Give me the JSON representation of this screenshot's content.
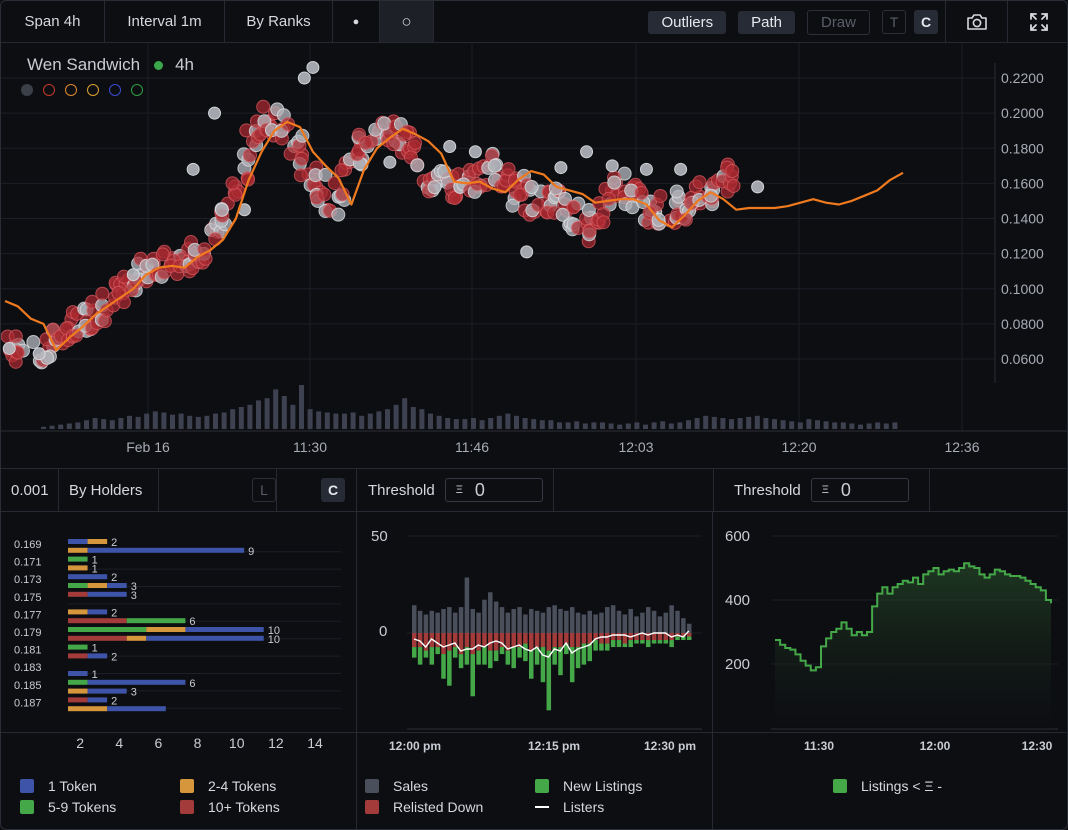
{
  "topbar": {
    "span": "Span 4h",
    "interval": "Interval 1m",
    "by_ranks": "By Ranks",
    "dot_toggle": "●",
    "circle_toggle": "○",
    "outliers": "Outliers",
    "path": "Path",
    "draw": "Draw",
    "t_toggle": "T",
    "c_toggle": "C",
    "camera_icon": "camera-icon",
    "fullscreen_icon": "fullscreen-icon"
  },
  "main_chart": {
    "collection": "Wen Sandwich",
    "status_color": "#3aa84a",
    "timeframe": "4h",
    "filter_colors": [
      "#3b3f48",
      "#c0392b",
      "#e08a2e",
      "#d9a030",
      "#3b4ccf",
      "#2e9e44"
    ],
    "chart_data": {
      "type": "scatter",
      "x_ticks": [
        "Feb 16",
        "11:30",
        "11:46",
        "12:03",
        "12:20",
        "12:36"
      ],
      "y_ticks": [
        "0.2200",
        "0.2000",
        "0.1800",
        "0.1600",
        "0.1400",
        "0.1200",
        "0.1000",
        "0.0800",
        "0.0600"
      ],
      "ylim": [
        0.05,
        0.23
      ],
      "xlim_minutes": [
        0,
        160
      ],
      "path_series": [
        [
          0,
          0.093
        ],
        [
          3,
          0.09
        ],
        [
          6,
          0.083
        ],
        [
          9,
          0.08
        ],
        [
          12,
          0.065
        ],
        [
          15,
          0.072
        ],
        [
          18,
          0.078
        ],
        [
          21,
          0.085
        ],
        [
          24,
          0.09
        ],
        [
          27,
          0.095
        ],
        [
          30,
          0.1
        ],
        [
          33,
          0.108
        ],
        [
          36,
          0.112
        ],
        [
          39,
          0.113
        ],
        [
          42,
          0.112
        ],
        [
          45,
          0.118
        ],
        [
          48,
          0.122
        ],
        [
          51,
          0.128
        ],
        [
          54,
          0.14
        ],
        [
          57,
          0.162
        ],
        [
          60,
          0.178
        ],
        [
          63,
          0.19
        ],
        [
          66,
          0.195
        ],
        [
          69,
          0.192
        ],
        [
          72,
          0.178
        ],
        [
          75,
          0.17
        ],
        [
          78,
          0.163
        ],
        [
          81,
          0.148
        ],
        [
          84,
          0.168
        ],
        [
          87,
          0.18
        ],
        [
          90,
          0.186
        ],
        [
          93,
          0.191
        ],
        [
          96,
          0.188
        ],
        [
          99,
          0.184
        ],
        [
          102,
          0.177
        ],
        [
          105,
          0.161
        ],
        [
          108,
          0.16
        ],
        [
          111,
          0.161
        ],
        [
          114,
          0.157
        ],
        [
          117,
          0.155
        ],
        [
          120,
          0.162
        ],
        [
          123,
          0.167
        ],
        [
          126,
          0.165
        ],
        [
          129,
          0.158
        ],
        [
          132,
          0.156
        ],
        [
          135,
          0.154
        ],
        [
          138,
          0.149
        ],
        [
          141,
          0.15
        ],
        [
          144,
          0.151
        ],
        [
          147,
          0.151
        ],
        [
          150,
          0.148
        ],
        [
          153,
          0.139
        ],
        [
          156,
          0.135
        ],
        [
          159,
          0.142
        ],
        [
          162,
          0.15
        ],
        [
          165,
          0.155
        ],
        [
          168,
          0.151
        ],
        [
          171,
          0.145
        ],
        [
          174,
          0.146
        ],
        [
          177,
          0.146
        ],
        [
          180,
          0.146
        ],
        [
          183,
          0.147
        ],
        [
          186,
          0.149
        ],
        [
          189,
          0.151
        ],
        [
          192,
          0.149
        ],
        [
          195,
          0.148
        ],
        [
          198,
          0.15
        ],
        [
          201,
          0.153
        ],
        [
          204,
          0.156
        ],
        [
          207,
          0.162
        ],
        [
          210,
          0.166
        ]
      ],
      "scatter_center": [
        [
          2,
          0.066
        ],
        [
          4,
          0.065
        ],
        [
          8,
          0.062
        ],
        [
          10,
          0.068
        ],
        [
          12,
          0.072
        ],
        [
          14,
          0.075
        ],
        [
          16,
          0.08
        ],
        [
          18,
          0.082
        ],
        [
          20,
          0.085
        ],
        [
          22,
          0.088
        ],
        [
          24,
          0.09
        ],
        [
          26,
          0.095
        ],
        [
          28,
          0.1
        ],
        [
          30,
          0.105
        ],
        [
          32,
          0.11
        ],
        [
          34,
          0.115
        ],
        [
          36,
          0.113
        ],
        [
          38,
          0.112
        ],
        [
          40,
          0.115
        ],
        [
          42,
          0.115
        ],
        [
          44,
          0.118
        ],
        [
          46,
          0.12
        ],
        [
          48,
          0.126
        ],
        [
          50,
          0.135
        ],
        [
          52,
          0.148
        ],
        [
          54,
          0.158
        ],
        [
          56,
          0.17
        ],
        [
          58,
          0.185
        ],
        [
          60,
          0.19
        ],
        [
          62,
          0.195
        ],
        [
          64,
          0.196
        ],
        [
          66,
          0.19
        ],
        [
          68,
          0.18
        ],
        [
          70,
          0.168
        ],
        [
          72,
          0.163
        ],
        [
          74,
          0.156
        ],
        [
          76,
          0.152
        ],
        [
          78,
          0.15
        ],
        [
          80,
          0.165
        ],
        [
          82,
          0.178
        ],
        [
          84,
          0.182
        ],
        [
          86,
          0.188
        ],
        [
          88,
          0.192
        ],
        [
          90,
          0.19
        ],
        [
          92,
          0.186
        ],
        [
          94,
          0.184
        ],
        [
          96,
          0.175
        ],
        [
          98,
          0.165
        ],
        [
          100,
          0.16
        ],
        [
          102,
          0.163
        ],
        [
          104,
          0.16
        ],
        [
          106,
          0.158
        ],
        [
          108,
          0.156
        ],
        [
          110,
          0.16
        ],
        [
          112,
          0.164
        ],
        [
          114,
          0.168
        ],
        [
          116,
          0.167
        ],
        [
          118,
          0.16
        ],
        [
          120,
          0.156
        ],
        [
          122,
          0.152
        ],
        [
          124,
          0.15
        ],
        [
          126,
          0.148
        ],
        [
          128,
          0.148
        ],
        [
          130,
          0.15
        ],
        [
          132,
          0.145
        ],
        [
          134,
          0.14
        ],
        [
          136,
          0.132
        ],
        [
          138,
          0.138
        ],
        [
          140,
          0.145
        ],
        [
          142,
          0.152
        ],
        [
          144,
          0.158
        ],
        [
          146,
          0.155
        ],
        [
          148,
          0.15
        ],
        [
          150,
          0.148
        ],
        [
          152,
          0.146
        ],
        [
          154,
          0.145
        ],
        [
          156,
          0.146
        ],
        [
          158,
          0.148
        ],
        [
          160,
          0.148
        ],
        [
          162,
          0.15
        ],
        [
          164,
          0.152
        ],
        [
          166,
          0.156
        ],
        [
          168,
          0.162
        ],
        [
          170,
          0.166
        ]
      ],
      "volume_bars": [
        2,
        3,
        4,
        5,
        6,
        8,
        10,
        9,
        8,
        10,
        12,
        11,
        14,
        16,
        15,
        13,
        14,
        12,
        11,
        12,
        14,
        15,
        18,
        20,
        22,
        26,
        28,
        36,
        30,
        22,
        40,
        18,
        16,
        15,
        14,
        14,
        15,
        12,
        14,
        16,
        18,
        22,
        28,
        20,
        18,
        14,
        12,
        10,
        9,
        9,
        10,
        8,
        10,
        12,
        14,
        12,
        10,
        9,
        8,
        8,
        6,
        6,
        7,
        5,
        6,
        6,
        5,
        4,
        5,
        6,
        4,
        6,
        7,
        5,
        6,
        8,
        10,
        12,
        11,
        10,
        9,
        10,
        11,
        12,
        10,
        9,
        8,
        7,
        6,
        9,
        8,
        7,
        6,
        6,
        5,
        4,
        5,
        6,
        5,
        6
      ]
    }
  },
  "holders_panel": {
    "precision": "0.001",
    "mode": "By Holders",
    "l_toggle": "L",
    "c_toggle": "C",
    "chart_data": {
      "type": "bar",
      "orientation": "horizontal",
      "stacked": true,
      "categories": [
        "0.169",
        "",
        "0.171",
        "",
        "0.173",
        "",
        "0.175",
        "",
        "0.177",
        "",
        "0.179",
        "",
        "0.181",
        "",
        "0.183",
        "",
        "0.185",
        "",
        "0.187",
        ""
      ],
      "rows": [
        {
          "segments": [
            [
              "1 Token",
              1
            ],
            [
              "2-4 Tokens",
              1
            ]
          ],
          "label": "2"
        },
        {
          "segments": [
            [
              "2-4 Tokens",
              1
            ],
            [
              "1 Token",
              8
            ]
          ],
          "label": "9"
        },
        {
          "segments": [
            [
              "5-9 Tokens",
              1
            ]
          ],
          "label": "1"
        },
        {
          "segments": [
            [
              "2-4 Tokens",
              1
            ]
          ],
          "label": "1"
        },
        {
          "segments": [
            [
              "1 Token",
              2
            ]
          ],
          "label": "2"
        },
        {
          "segments": [
            [
              "5-9 Tokens",
              1
            ],
            [
              "2-4 Tokens",
              1
            ],
            [
              "1 Token",
              1
            ]
          ],
          "label": "3"
        },
        {
          "segments": [
            [
              "10+ Tokens",
              1
            ],
            [
              "1 Token",
              2
            ]
          ],
          "label": "3"
        },
        {
          "segments": [],
          "label": ""
        },
        {
          "segments": [
            [
              "2-4 Tokens",
              1
            ],
            [
              "1 Token",
              1
            ]
          ],
          "label": "2"
        },
        {
          "segments": [
            [
              "10+ Tokens",
              3
            ],
            [
              "5-9 Tokens",
              3
            ]
          ],
          "label": "6"
        },
        {
          "segments": [
            [
              "5-9 Tokens",
              4
            ],
            [
              "2-4 Tokens",
              2
            ],
            [
              "1 Token",
              4
            ]
          ],
          "label": "10"
        },
        {
          "segments": [
            [
              "10+ Tokens",
              3
            ],
            [
              "2-4 Tokens",
              1
            ],
            [
              "1 Token",
              6
            ]
          ],
          "label": "10"
        },
        {
          "segments": [
            [
              "5-9 Tokens",
              1
            ]
          ],
          "label": "1"
        },
        {
          "segments": [
            [
              "10+ Tokens",
              1
            ],
            [
              "1 Token",
              1
            ]
          ],
          "label": "2"
        },
        {
          "segments": [],
          "label": ""
        },
        {
          "segments": [
            [
              "1 Token",
              1
            ]
          ],
          "label": "1"
        },
        {
          "segments": [
            [
              "5-9 Tokens",
              1
            ],
            [
              "1 Token",
              5
            ]
          ],
          "label": "6"
        },
        {
          "segments": [
            [
              "2-4 Tokens",
              1
            ],
            [
              "1 Token",
              2
            ]
          ],
          "label": "3"
        },
        {
          "segments": [
            [
              "10+ Tokens",
              1
            ],
            [
              "1 Token",
              1
            ]
          ],
          "label": "2"
        },
        {
          "segments": [
            [
              "2-4 Tokens",
              2
            ],
            [
              "1 Token",
              3
            ]
          ],
          "label": ""
        }
      ],
      "x_ticks": [
        "2",
        "4",
        "6",
        "8",
        "10",
        "12",
        "14"
      ],
      "xlim": [
        0,
        14
      ]
    },
    "legend": [
      {
        "name": "1 Token",
        "color": "#3d54a8"
      },
      {
        "name": "2-4 Tokens",
        "color": "#d6963c"
      },
      {
        "name": "5-9 Tokens",
        "color": "#44a848"
      },
      {
        "name": "10+ Tokens",
        "color": "#a33b3b"
      }
    ]
  },
  "sales_panel": {
    "threshold_label": "Threshold",
    "threshold_symbol": "Ξ",
    "threshold_value": "0",
    "chart_data": {
      "type": "bar",
      "y_ticks": [
        "50",
        "0"
      ],
      "ylim": [
        -55,
        55
      ],
      "x_ticks": [
        "12:00 pm",
        "12:15 pm",
        "12:30 pm"
      ],
      "sales": [
        15,
        12,
        10,
        12,
        11,
        13,
        14,
        11,
        14,
        30,
        13,
        11,
        18,
        22,
        17,
        14,
        11,
        13,
        14,
        10,
        13,
        12,
        11,
        14,
        15,
        13,
        12,
        14,
        11,
        10,
        12,
        10,
        11,
        14,
        15,
        12,
        10,
        13,
        9,
        11,
        14,
        12,
        9,
        11,
        15,
        12,
        8,
        5
      ],
      "relisted_down": [
        4,
        4,
        5,
        4,
        4,
        6,
        5,
        4,
        6,
        4,
        6,
        5,
        4,
        5,
        5,
        4,
        5,
        4,
        4,
        3,
        5,
        4,
        4,
        5,
        4,
        4,
        3,
        4,
        4,
        3,
        3,
        2,
        3,
        3,
        2,
        2,
        3,
        2,
        2,
        2,
        2,
        2,
        2,
        2,
        2,
        1,
        1,
        1
      ],
      "new_listings": [
        3,
        5,
        2,
        5,
        2,
        7,
        10,
        3,
        4,
        5,
        12,
        4,
        5,
        5,
        3,
        2,
        4,
        6,
        3,
        5,
        8,
        5,
        10,
        17,
        5,
        8,
        3,
        10,
        6,
        6,
        5,
        3,
        2,
        2,
        2,
        2,
        1,
        2,
        1,
        1,
        2,
        1,
        1,
        1,
        2,
        1,
        1,
        1
      ],
      "listers": [
        -6,
        -8,
        -14,
        -6,
        -10,
        -14,
        -12,
        -10,
        -18,
        -16,
        -16,
        -12,
        -14,
        -10,
        -8,
        -10,
        -16,
        -14,
        -12,
        -16,
        -18,
        -14,
        -22,
        -24,
        -16,
        -18,
        -10,
        -20,
        -16,
        -14,
        -12,
        -6,
        -4,
        -4,
        -2,
        -2,
        -2,
        -4,
        -2,
        0,
        -2,
        0,
        0,
        0,
        -4,
        -2,
        -4,
        2
      ],
      "legend": [
        {
          "name": "Sales",
          "color": "#4a4f5c"
        },
        {
          "name": "New Listings",
          "color": "#44a848"
        },
        {
          "name": "Relisted Down",
          "color": "#a33b3b"
        },
        {
          "name": "Listers",
          "color": "#ffffff"
        }
      ]
    }
  },
  "listings_panel": {
    "threshold_label": "Threshold",
    "threshold_symbol": "Ξ",
    "threshold_value": "0",
    "chart_data": {
      "type": "area",
      "y_ticks": [
        "600",
        "400",
        "200"
      ],
      "ylim": [
        0,
        650
      ],
      "x_ticks": [
        "11:30",
        "12:00",
        "12:30"
      ],
      "values": [
        275,
        260,
        250,
        245,
        230,
        210,
        195,
        180,
        190,
        255,
        280,
        300,
        310,
        330,
        310,
        290,
        300,
        290,
        300,
        380,
        420,
        440,
        420,
        440,
        450,
        460,
        455,
        470,
        450,
        480,
        490,
        500,
        480,
        490,
        495,
        490,
        500,
        515,
        505,
        500,
        480,
        470,
        480,
        495,
        490,
        480,
        475,
        475,
        470,
        460,
        450,
        440,
        430,
        400,
        390
      ],
      "legend": [
        {
          "name": "Listings < Ξ -",
          "color": "#44a848"
        }
      ]
    }
  }
}
